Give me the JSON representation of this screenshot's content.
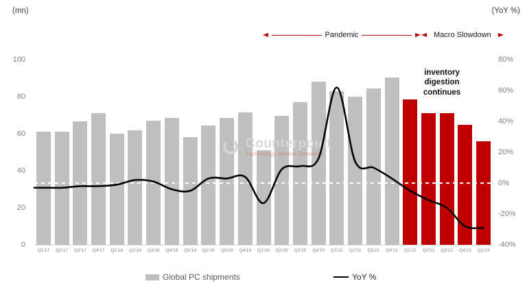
{
  "header": {
    "left_unit": "(mn)",
    "right_unit": "(YoY %)"
  },
  "annotations": {
    "pandemic_label": "Pandemic",
    "macro_label": "Macro Slowdown",
    "note": "inventory digestion continues"
  },
  "watermark": {
    "name": "Counterpoint",
    "tagline": "Technology Market Research"
  },
  "legend": [
    {
      "label": "Global PC shipments",
      "type": "bar",
      "color": "#BFBFBF"
    },
    {
      "label": "YoY %",
      "type": "line",
      "color": "#000000"
    }
  ],
  "colors": {
    "bar_gray": "#BFBFBF",
    "bar_red": "#C00000",
    "line_black": "#000000",
    "arrow_red": "#C00000",
    "zero_line_white": "#FFFFFF",
    "tick_gray": "#808080"
  },
  "chart_data": {
    "type": "bar",
    "subtype": "bar-line-combo",
    "categories": [
      "Q1'17",
      "Q2'17",
      "Q3'17",
      "Q4'17",
      "Q1'18",
      "Q2'18",
      "Q3'18",
      "Q4'18",
      "Q1'19",
      "Q2'19",
      "Q3'19",
      "Q4'19",
      "Q1'20",
      "Q2'20",
      "Q3'20",
      "Q4'20",
      "Q1'21",
      "Q2'21",
      "Q3'21",
      "Q4'21",
      "Q1'22",
      "Q2'22",
      "Q3'22",
      "Q4'22",
      "Q1'23"
    ],
    "series": [
      {
        "name": "Global PC shipments",
        "type": "bar",
        "axis": "left",
        "unit": "mn",
        "values": [
          61,
          61,
          66.5,
          71,
          60,
          62,
          67,
          68.5,
          58,
          64.5,
          68.5,
          71.5,
          51,
          69.5,
          77,
          88,
          83,
          80,
          84.5,
          90.5,
          78.5,
          71,
          71,
          65,
          56
        ]
      },
      {
        "name": "YoY %",
        "type": "line",
        "axis": "right",
        "unit": "%",
        "values": [
          -3,
          -3,
          -2,
          -2,
          -1,
          2,
          1,
          -4,
          -5,
          3,
          3,
          4,
          -13,
          9,
          11,
          16,
          62,
          14,
          10,
          3,
          -5,
          -11,
          -16,
          -28,
          -29
        ]
      }
    ],
    "highlight": {
      "start_index": 20,
      "quarters": [
        "Q1'22",
        "Q2'22",
        "Q3'22",
        "Q4'22",
        "Q1'23"
      ],
      "color": "#C00000"
    },
    "left_axis": {
      "label": "(mn)",
      "tick_values": [
        100,
        80,
        60,
        40,
        20,
        0
      ],
      "range": [
        0,
        100
      ]
    },
    "right_axis": {
      "label": "(YoY %)",
      "tick_labels": [
        "80%",
        "60%",
        "40%",
        "20%",
        "0%",
        "-20%",
        "-40%"
      ],
      "tick_values": [
        80,
        60,
        40,
        20,
        0,
        -20,
        -40
      ],
      "range": [
        -40,
        80
      ]
    },
    "zero_line": "white dashed at 0%",
    "grid": "off",
    "legend_position": "bottom"
  }
}
